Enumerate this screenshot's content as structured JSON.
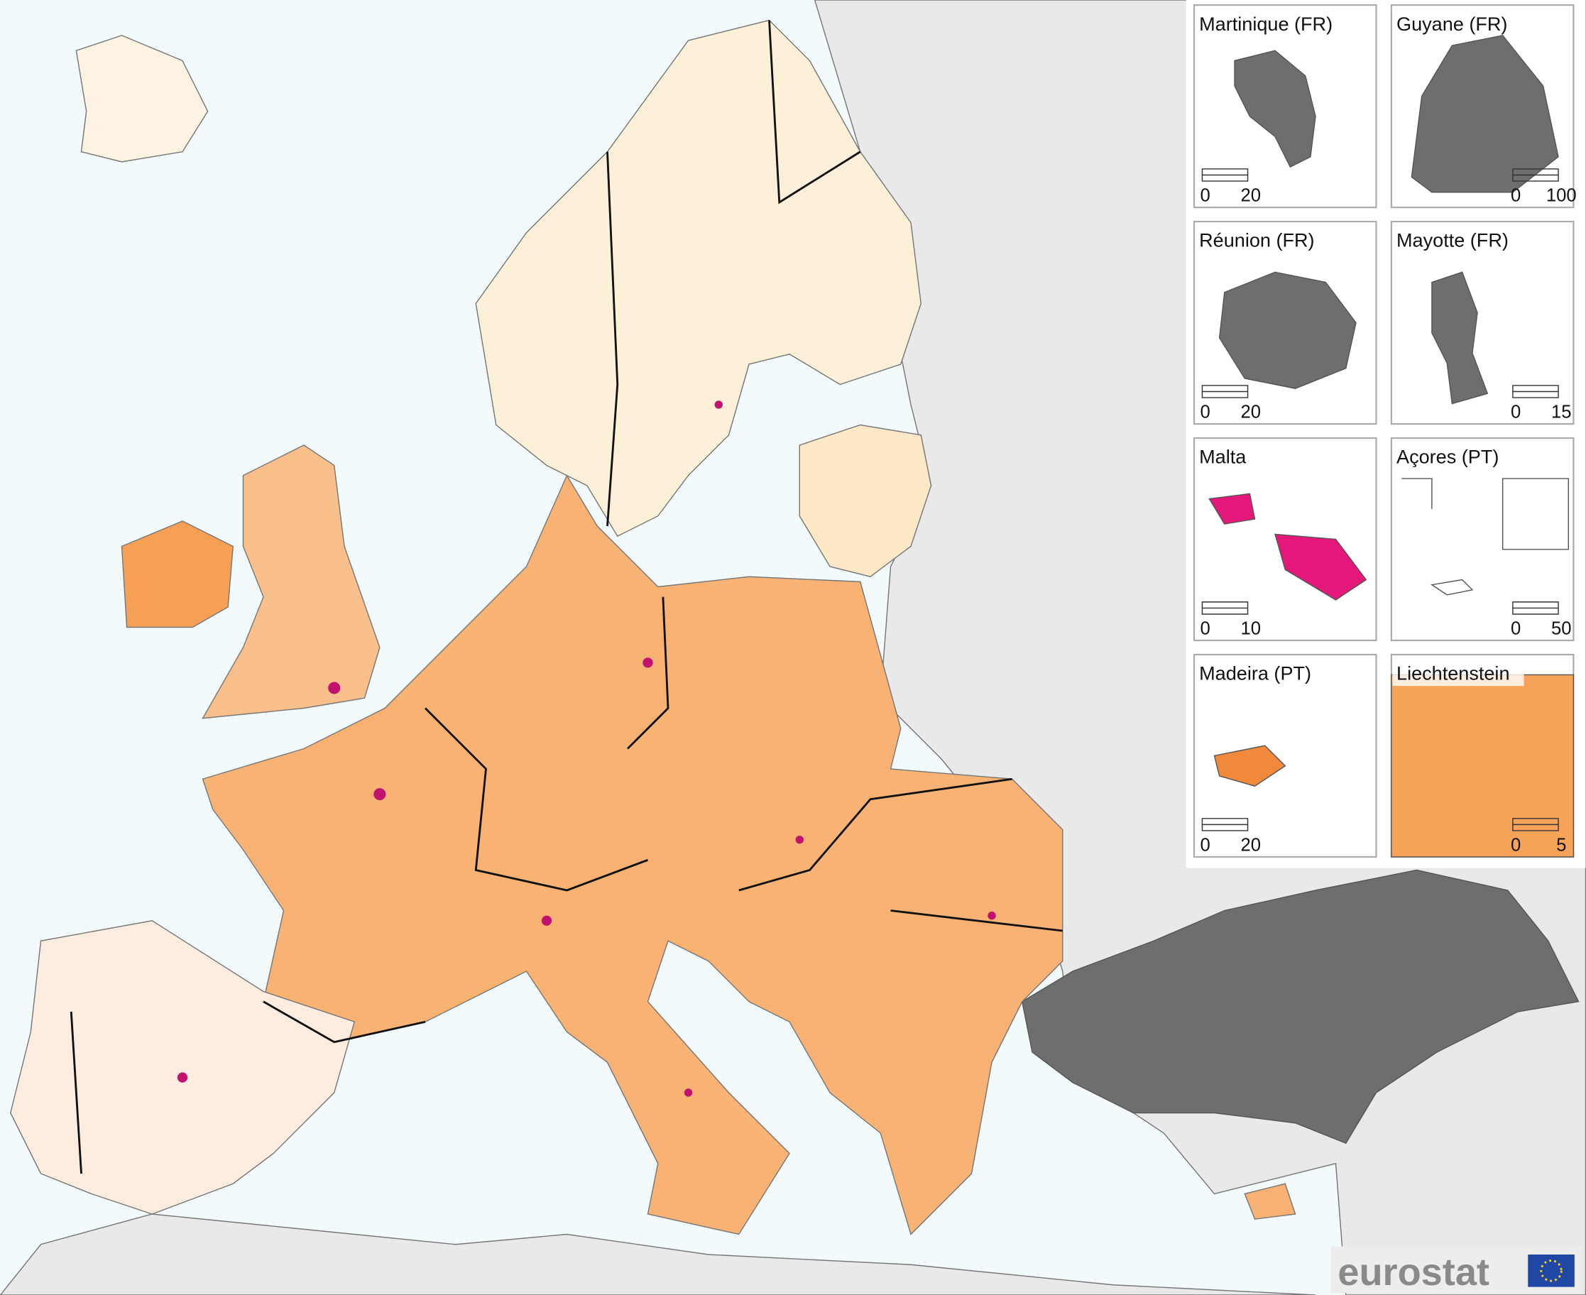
{
  "insets": [
    {
      "title": "Martinique (FR)",
      "scale_bar": [
        0,
        20
      ]
    },
    {
      "title": "Guyane (FR)",
      "scale_bar": [
        0,
        100
      ]
    },
    {
      "title": "Réunion (FR)",
      "scale_bar": [
        0,
        20
      ]
    },
    {
      "title": "Mayotte (FR)",
      "scale_bar": [
        0,
        15
      ]
    },
    {
      "title": "Malta",
      "scale_bar": [
        0,
        10
      ]
    },
    {
      "title": "Açores (PT)",
      "scale_bar": [
        0,
        50
      ]
    },
    {
      "title": "Madeira (PT)",
      "scale_bar": [
        0,
        20
      ]
    },
    {
      "title": "Liechtenstein",
      "scale_bar": [
        0,
        5
      ]
    }
  ],
  "logo": "eurostat"
}
